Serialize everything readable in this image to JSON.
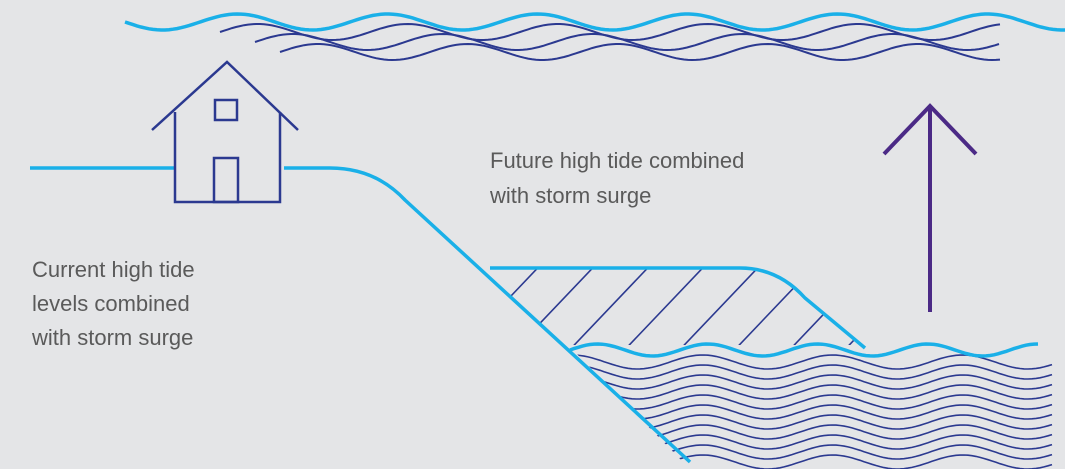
{
  "labels": {
    "future": [
      "Future high tide combined",
      "with storm surge"
    ],
    "current": [
      "Current high tide",
      "levels combined",
      "with storm surge"
    ]
  }
}
